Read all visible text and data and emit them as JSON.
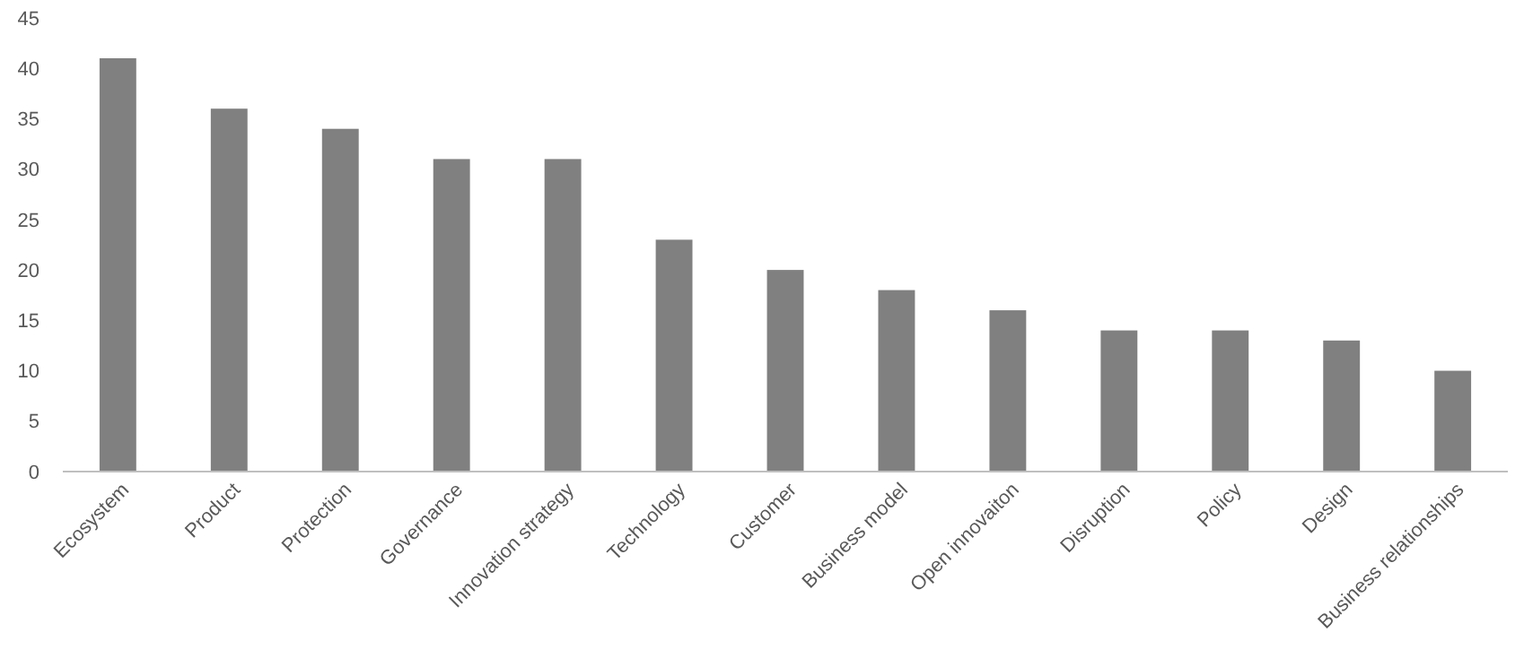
{
  "chart_data": {
    "type": "bar",
    "categories": [
      "Ecosystem",
      "Product",
      "Protection",
      "Governance",
      "Innovation strategy",
      "Technology",
      "Customer",
      "Business model",
      "Open innovaiton",
      "Disruption",
      "Policy",
      "Design",
      "Business relationships"
    ],
    "values": [
      41,
      36,
      34,
      31,
      31,
      23,
      20,
      18,
      16,
      14,
      14,
      13,
      10
    ],
    "color": "#808080",
    "ylim": [
      0,
      45
    ],
    "yticks": [
      0,
      5,
      10,
      15,
      20,
      25,
      30,
      35,
      40,
      45
    ],
    "grid": false
  }
}
